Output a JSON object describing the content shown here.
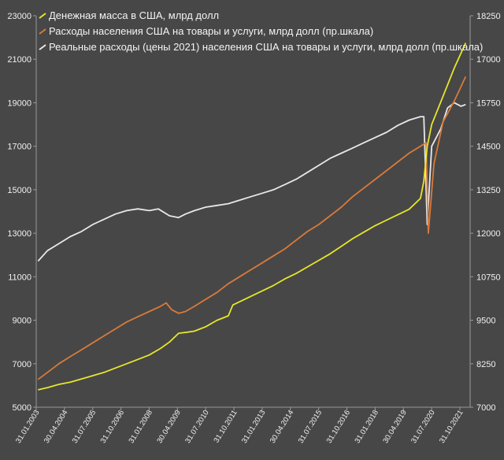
{
  "chart_data": {
    "type": "line",
    "title": "",
    "xlabel": "",
    "ylabel": "",
    "grid": false,
    "legend_position": "top-left",
    "x_tick_labels": [
      "31.01.2003",
      "30.04.2004",
      "31.07.2005",
      "31.10.2006",
      "31.01.2008",
      "30.04.2009",
      "31.07.2010",
      "31.10.2011",
      "31.01.2013",
      "30.04.2014",
      "31.07.2015",
      "31.10.2016",
      "31.01.2018",
      "30.04.2019",
      "31.07.2020",
      "31.10.2021"
    ],
    "y_left": {
      "min": 5000,
      "max": 23000,
      "ticks": [
        "5000",
        "7000",
        "9000",
        "11000",
        "13000",
        "15000",
        "17000",
        "19000",
        "21000",
        "23000"
      ]
    },
    "y_right": {
      "min": 7000,
      "max": 18250,
      "ticks": [
        "7000",
        "8250",
        "9500",
        "10750",
        "12000",
        "13250",
        "14500",
        "15750",
        "17000",
        "18250"
      ]
    },
    "series": [
      {
        "name": "Денежная масса в США, млрд долл",
        "axis": "left",
        "color": "#e6e62a",
        "x": [
          2003.08,
          2003.5,
          2004.0,
          2004.5,
          2005.0,
          2005.5,
          2006.0,
          2006.5,
          2007.0,
          2007.5,
          2008.0,
          2008.5,
          2008.9,
          2009.3,
          2009.7,
          2010.0,
          2010.5,
          2011.0,
          2011.5,
          2011.7,
          2012.0,
          2012.5,
          2013.0,
          2013.5,
          2014.0,
          2014.5,
          2015.0,
          2015.5,
          2016.0,
          2016.5,
          2017.0,
          2017.5,
          2018.0,
          2018.5,
          2019.0,
          2019.5,
          2020.0,
          2020.15,
          2020.3,
          2020.5,
          2021.0,
          2021.5,
          2022.0
        ],
        "y": [
          5800,
          5900,
          6050,
          6150,
          6300,
          6450,
          6600,
          6800,
          7000,
          7200,
          7400,
          7700,
          8000,
          8400,
          8450,
          8500,
          8700,
          9000,
          9200,
          9700,
          9850,
          10100,
          10350,
          10600,
          10900,
          11150,
          11450,
          11750,
          12050,
          12400,
          12750,
          13050,
          13350,
          13600,
          13850,
          14100,
          14600,
          15400,
          17000,
          18000,
          19300,
          20600,
          21750
        ]
      },
      {
        "name": "Расходы населения США на товары и услуги, млрд долл (пр.шкала)",
        "axis": "right",
        "color": "#d97a3a",
        "x": [
          2003.08,
          2003.5,
          2004.0,
          2004.5,
          2005.0,
          2005.5,
          2006.0,
          2006.5,
          2007.0,
          2007.5,
          2008.0,
          2008.5,
          2008.75,
          2009.0,
          2009.3,
          2009.6,
          2010.0,
          2010.5,
          2011.0,
          2011.5,
          2012.0,
          2012.5,
          2013.0,
          2013.5,
          2014.0,
          2014.5,
          2015.0,
          2015.5,
          2016.0,
          2016.5,
          2017.0,
          2017.5,
          2018.0,
          2018.5,
          2019.0,
          2019.5,
          2020.0,
          2020.25,
          2020.35,
          2020.6,
          2021.0,
          2021.5,
          2022.0
        ],
        "y": [
          7800,
          8000,
          8250,
          8450,
          8650,
          8850,
          9050,
          9250,
          9450,
          9600,
          9750,
          9900,
          10000,
          9800,
          9700,
          9750,
          9900,
          10100,
          10300,
          10550,
          10750,
          10950,
          11150,
          11350,
          11550,
          11800,
          12050,
          12250,
          12500,
          12750,
          13050,
          13300,
          13550,
          13800,
          14050,
          14300,
          14500,
          14600,
          12000,
          14000,
          15200,
          15800,
          16500
        ]
      },
      {
        "name": "Реальные расходы (цены 2021) населения США на товары и услуги, млрд долл (пр.шкала)",
        "axis": "right",
        "color": "#e8e8e8",
        "x": [
          2003.08,
          2003.5,
          2004.0,
          2004.5,
          2005.0,
          2005.5,
          2006.0,
          2006.5,
          2007.0,
          2007.5,
          2008.0,
          2008.4,
          2008.9,
          2009.3,
          2009.6,
          2010.0,
          2010.5,
          2011.0,
          2011.5,
          2012.0,
          2012.5,
          2013.0,
          2013.5,
          2014.0,
          2014.5,
          2015.0,
          2015.5,
          2016.0,
          2016.5,
          2017.0,
          2017.5,
          2018.0,
          2018.5,
          2019.0,
          2019.5,
          2020.0,
          2020.15,
          2020.3,
          2020.5,
          2020.9,
          2021.2,
          2021.5,
          2021.8,
          2022.0
        ],
        "y": [
          11200,
          11500,
          11700,
          11900,
          12050,
          12250,
          12400,
          12550,
          12650,
          12700,
          12650,
          12700,
          12500,
          12450,
          12550,
          12650,
          12750,
          12800,
          12850,
          12950,
          13050,
          13150,
          13250,
          13400,
          13550,
          13750,
          13950,
          14150,
          14300,
          14450,
          14600,
          14750,
          14900,
          15100,
          15250,
          15350,
          15350,
          12250,
          14500,
          15000,
          15600,
          15750,
          15650,
          15700
        ]
      }
    ]
  }
}
